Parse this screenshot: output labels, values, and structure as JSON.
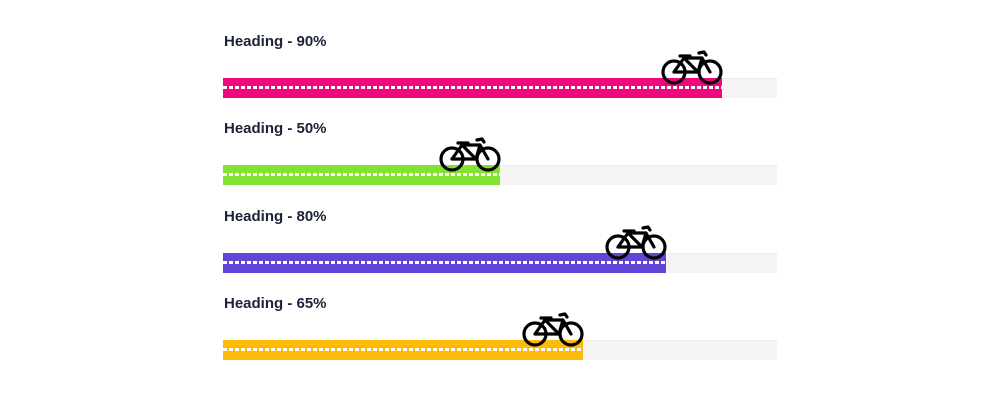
{
  "progress_bars": [
    {
      "heading": "Heading - 90%",
      "progress": 0.9,
      "color": "#f0077f",
      "icon": "bicycle-icon"
    },
    {
      "heading": "Heading - 50%",
      "progress": 0.5,
      "color": "#83e231",
      "icon": "bicycle-icon"
    },
    {
      "heading": "Heading - 80%",
      "progress": 0.8,
      "color": "#6245d8",
      "icon": "bicycle-icon"
    },
    {
      "heading": "Heading - 65%",
      "progress": 0.65,
      "color": "#fdbc07",
      "icon": "bicycle-icon"
    }
  ],
  "colors": {
    "track": "#f4f4f4",
    "heading_text": "#1c2237",
    "dashes": "#ffffff"
  }
}
